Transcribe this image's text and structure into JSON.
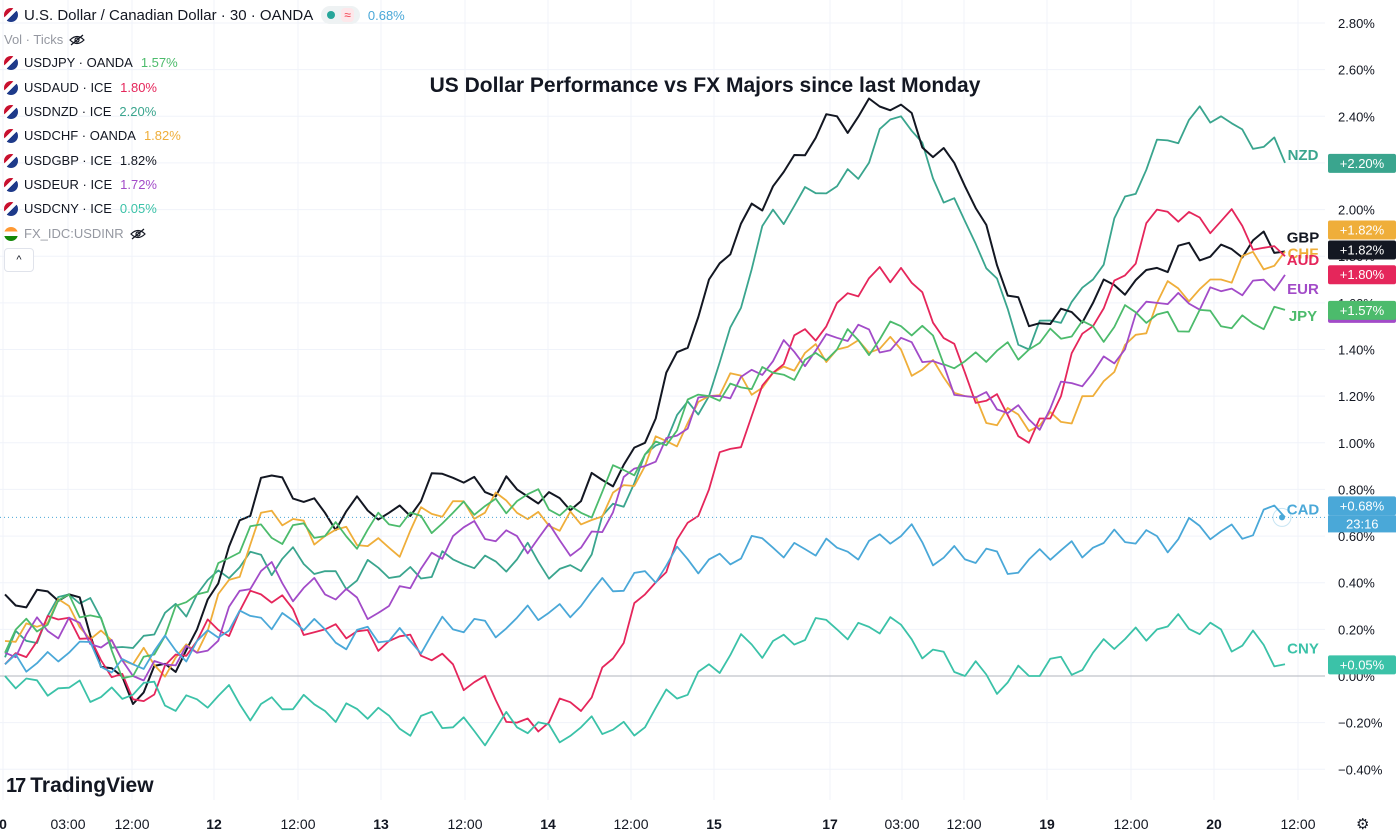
{
  "header": {
    "symbol_title": "U.S. Dollar / Canadian Dollar · 30 · OANDA",
    "wave_glyph": "≈",
    "change": "0.68%",
    "vol_label": "Vol · Ticks"
  },
  "legend": [
    {
      "symbol": "USDJPY · OANDA",
      "value": "1.57%",
      "color": "#4cbb6c"
    },
    {
      "symbol": "USDAUD · ICE",
      "value": "1.80%",
      "color": "#e5265b"
    },
    {
      "symbol": "USDNZD · ICE",
      "value": "2.20%",
      "color": "#3aa58e"
    },
    {
      "symbol": "USDCHF · OANDA",
      "value": "1.82%",
      "color": "#efae3a"
    },
    {
      "symbol": "USDGBP · ICE",
      "value": "1.82%",
      "color": "#131722"
    },
    {
      "symbol": "USDEUR · ICE",
      "value": "1.72%",
      "color": "#a24bc8"
    },
    {
      "symbol": "USDCNY · ICE",
      "value": "0.05%",
      "color": "#3bc2a8"
    },
    {
      "symbol": "FX_IDC:USDINR",
      "value": "",
      "color": "#9598a1"
    }
  ],
  "collapse_glyph": "^",
  "branding": {
    "logo_mark": "17",
    "logo_text": "TradingView"
  },
  "settings_glyph": "⚙",
  "chart_data": {
    "type": "line",
    "title": "US Dollar Performance vs FX Majors since last Monday",
    "y_ticks": [
      "2.80%",
      "2.60%",
      "2.40%",
      "2.20%",
      "2.00%",
      "1.80%",
      "1.60%",
      "1.40%",
      "1.20%",
      "1.00%",
      "0.80%",
      "0.60%",
      "0.40%",
      "0.20%",
      "0.00%",
      "−0.20%",
      "−0.40%"
    ],
    "ylim": [
      -0.45,
      2.85
    ],
    "x_ticks": [
      "0",
      "03:00",
      "12:00",
      "12",
      "12:00",
      "13",
      "12:00",
      "14",
      "12:00",
      "15",
      "17",
      "03:00",
      "12:00",
      "19",
      "12:00",
      "20",
      "12:00"
    ],
    "bold_x_ticks": [
      "0",
      "12",
      "13",
      "14",
      "15",
      "17",
      "19",
      "20"
    ],
    "grid": true,
    "baseline": 0.0,
    "series": [
      {
        "name": "NZD",
        "label": "+2.20%",
        "color": "#3aa58e",
        "x": [
          0,
          5,
          10,
          15,
          20,
          25,
          30,
          35,
          40,
          45,
          50,
          55,
          60,
          65,
          70,
          75,
          80,
          85,
          90,
          95,
          100
        ],
        "values": [
          0.08,
          0.35,
          0.12,
          0.35,
          0.52,
          0.45,
          0.42,
          0.5,
          0.5,
          0.45,
          0.95,
          1.2,
          2.0,
          2.1,
          2.4,
          1.95,
          1.4,
          1.7,
          2.3,
          2.4,
          2.2
        ]
      },
      {
        "name": "GBP",
        "label": "+1.82%",
        "color": "#131722",
        "x": [
          0,
          5,
          10,
          15,
          20,
          25,
          30,
          35,
          40,
          45,
          50,
          55,
          60,
          65,
          70,
          75,
          80,
          85,
          90,
          95,
          100
        ],
        "values": [
          0.35,
          0.35,
          -0.12,
          0.2,
          0.85,
          0.7,
          0.7,
          0.85,
          0.8,
          0.75,
          1.0,
          1.7,
          2.1,
          2.4,
          2.45,
          2.1,
          1.5,
          1.6,
          1.75,
          1.85,
          1.82
        ]
      },
      {
        "name": "CHF",
        "label": "+1.82%",
        "color": "#efae3a",
        "x": [
          0,
          5,
          10,
          15,
          20,
          25,
          30,
          35,
          40,
          45,
          50,
          55,
          60,
          65,
          70,
          75,
          80,
          85,
          90,
          95,
          100
        ],
        "values": [
          0.15,
          0.3,
          0.05,
          0.1,
          0.7,
          0.6,
          0.55,
          0.75,
          0.7,
          0.65,
          0.9,
          1.2,
          1.3,
          1.4,
          1.4,
          1.2,
          1.05,
          1.2,
          1.6,
          1.7,
          1.82
        ]
      },
      {
        "name": "AUD",
        "label": "+1.80%",
        "color": "#e5265b",
        "x": [
          0,
          5,
          10,
          15,
          20,
          25,
          30,
          35,
          40,
          45,
          50,
          55,
          60,
          65,
          70,
          75,
          80,
          85,
          90,
          95,
          100
        ],
        "values": [
          0.05,
          0.25,
          -0.1,
          0.15,
          0.35,
          0.2,
          0.15,
          0.05,
          -0.2,
          -0.15,
          0.35,
          0.8,
          1.3,
          1.6,
          1.75,
          1.3,
          1.0,
          1.5,
          2.0,
          1.95,
          1.8
        ]
      },
      {
        "name": "EUR",
        "label": "+1.72%",
        "color": "#a24bc8",
        "x": [
          0,
          5,
          10,
          15,
          20,
          25,
          30,
          35,
          40,
          45,
          50,
          55,
          60,
          65,
          70,
          75,
          80,
          85,
          90,
          95,
          100
        ],
        "values": [
          0.1,
          0.25,
          0.0,
          0.1,
          0.45,
          0.35,
          0.3,
          0.6,
          0.6,
          0.55,
          0.9,
          1.2,
          1.35,
          1.45,
          1.45,
          1.2,
          1.1,
          1.3,
          1.6,
          1.65,
          1.72
        ]
      },
      {
        "name": "JPY",
        "label": "+1.57%",
        "color": "#4cbb6c",
        "x": [
          0,
          5,
          10,
          15,
          20,
          25,
          30,
          35,
          40,
          45,
          50,
          55,
          60,
          65,
          70,
          75,
          80,
          85,
          90,
          95,
          100
        ],
        "values": [
          0.1,
          0.35,
          0.0,
          0.35,
          0.65,
          0.6,
          0.65,
          0.7,
          0.75,
          0.7,
          0.95,
          1.2,
          1.3,
          1.4,
          1.5,
          1.35,
          1.4,
          1.5,
          1.55,
          1.5,
          1.57
        ]
      },
      {
        "name": "CAD",
        "label": "+0.68%",
        "color": "#4aa8d8",
        "x": [
          0,
          5,
          10,
          15,
          20,
          25,
          30,
          35,
          40,
          45,
          50,
          55,
          60,
          65,
          70,
          75,
          80,
          85,
          90,
          95,
          100
        ],
        "values": [
          0.05,
          0.1,
          0.05,
          0.15,
          0.25,
          0.2,
          0.15,
          0.2,
          0.25,
          0.3,
          0.45,
          0.5,
          0.55,
          0.55,
          0.6,
          0.5,
          0.5,
          0.55,
          0.6,
          0.62,
          0.68
        ]
      },
      {
        "name": "CNY",
        "label": "+0.05%",
        "color": "#3bc2a8",
        "x": [
          0,
          5,
          10,
          15,
          20,
          25,
          30,
          35,
          40,
          45,
          50,
          55,
          60,
          65,
          70,
          75,
          80,
          85,
          90,
          95,
          100
        ],
        "values": [
          0.0,
          -0.05,
          -0.08,
          -0.1,
          -0.12,
          -0.15,
          -0.17,
          -0.22,
          -0.22,
          -0.22,
          -0.22,
          0.05,
          0.15,
          0.2,
          0.22,
          0.0,
          0.0,
          0.1,
          0.2,
          0.2,
          0.05
        ]
      }
    ],
    "cad_timer": "23:16"
  }
}
